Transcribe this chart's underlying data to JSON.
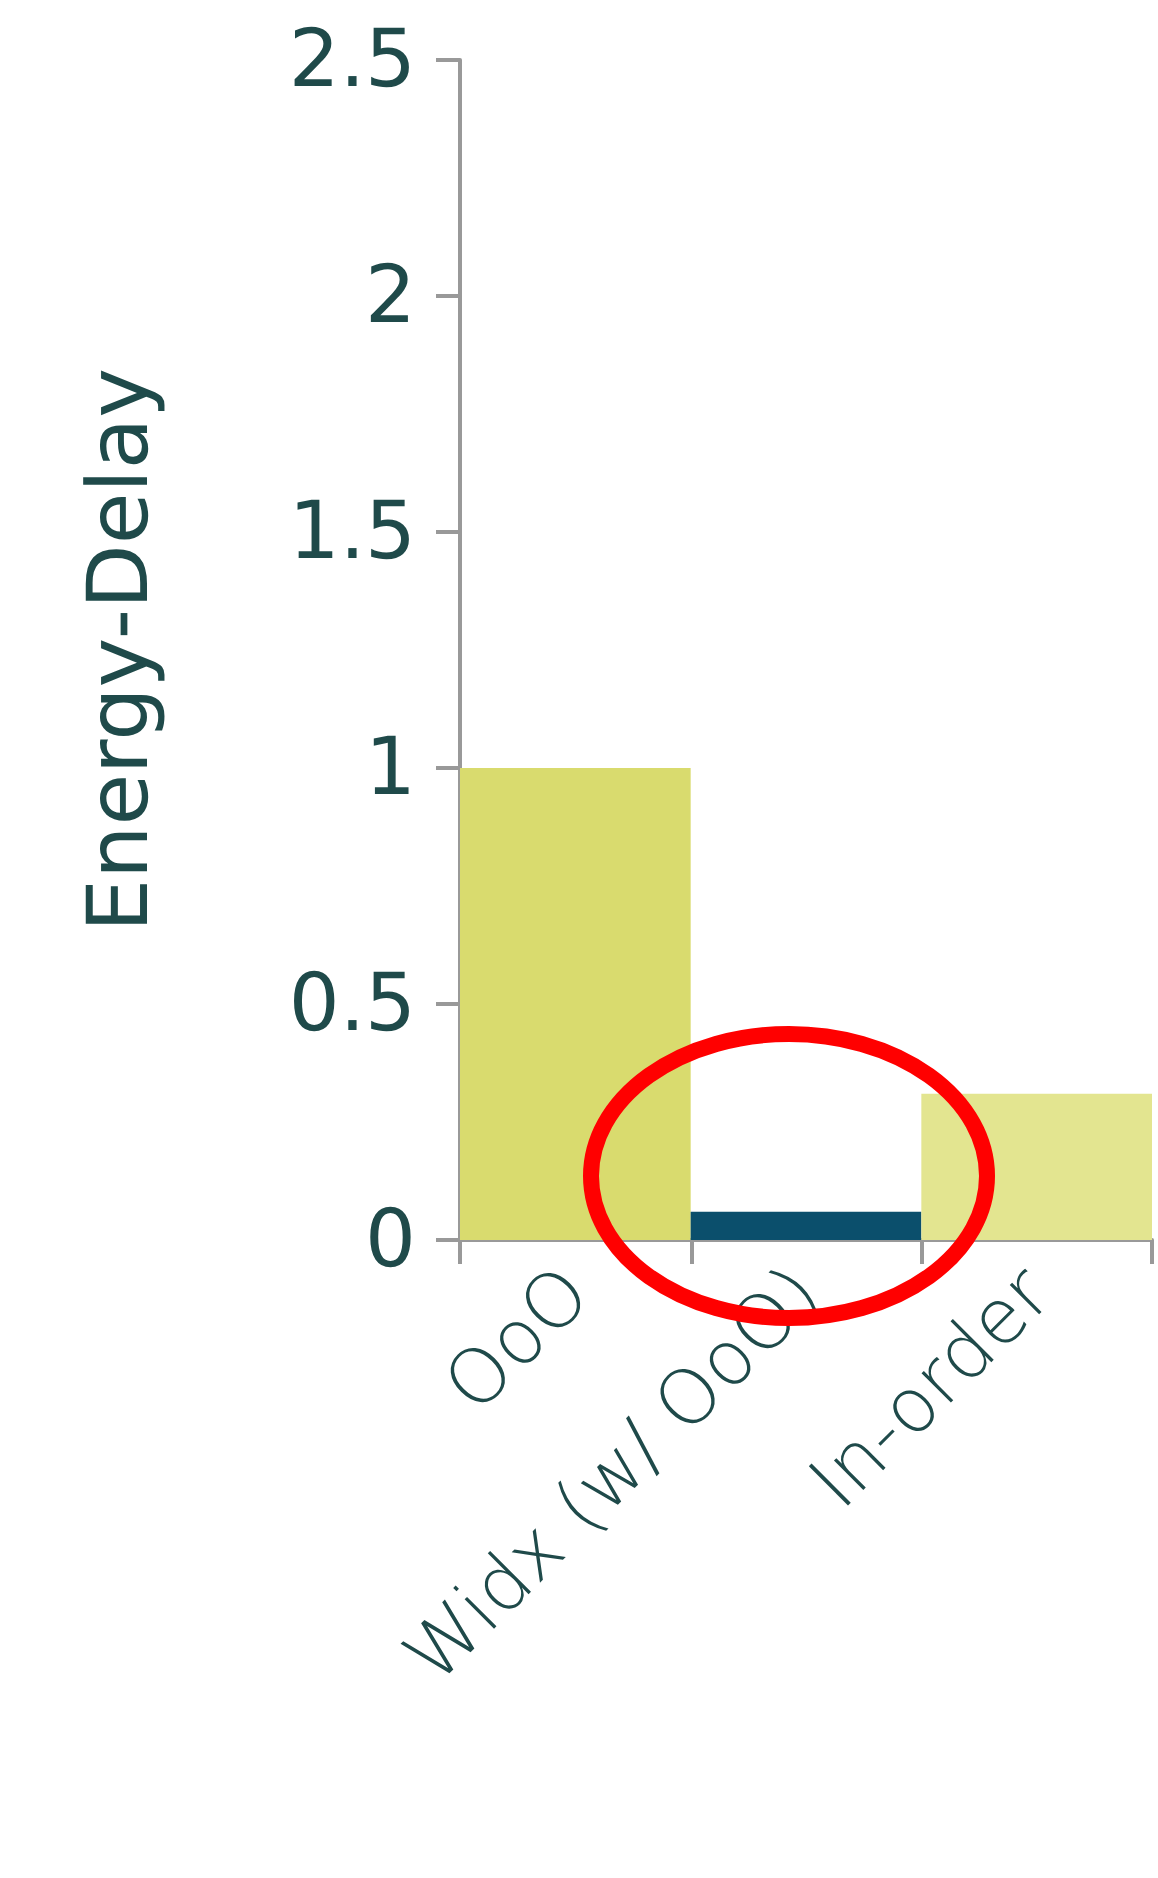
{
  "chart_data": {
    "type": "bar",
    "ylabel": "Energy-Delay",
    "categories": [
      "OoO",
      "Widx (w/ OoO)",
      "In-order"
    ],
    "values": [
      1.0,
      0.06,
      0.31
    ],
    "colors": [
      "#d9db6e",
      "#0b4f6c",
      "#e3e590"
    ],
    "ylim": [
      0,
      2.5
    ],
    "yticks": [
      0,
      0.5,
      1,
      1.5,
      2,
      2.5
    ],
    "grid": false
  }
}
